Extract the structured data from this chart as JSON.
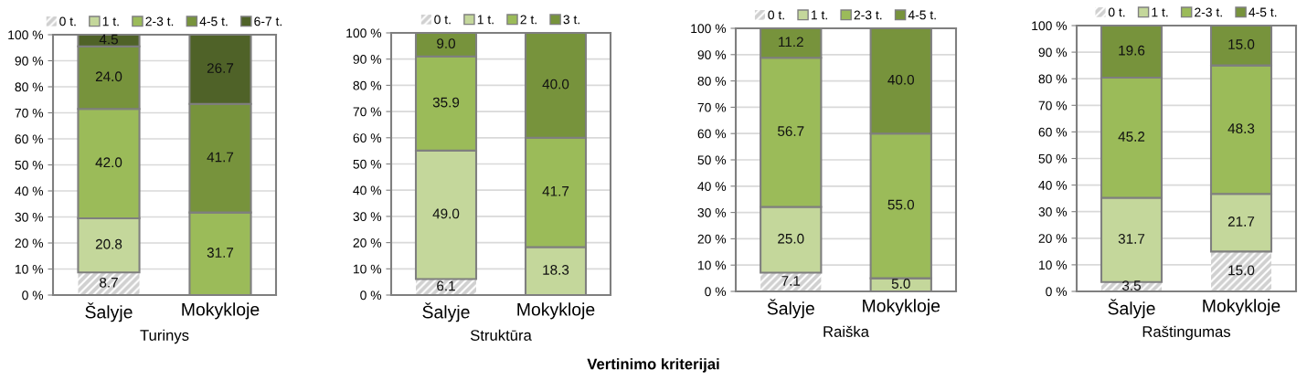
{
  "chart_data": [
    {
      "type": "bar",
      "stacked": true,
      "xlabel": "Turinys",
      "categories": [
        "Šalyje",
        "Mokykloje"
      ],
      "ylim": [
        0,
        100
      ],
      "yticks": [
        {
          "value": 0,
          "label": "0 %"
        },
        {
          "value": 10,
          "label": "10 %"
        },
        {
          "value": 20,
          "label": "20 %"
        },
        {
          "value": 30,
          "label": "30 %"
        },
        {
          "value": 40,
          "label": "40 %"
        },
        {
          "value": 50,
          "label": "50 %"
        },
        {
          "value": 60,
          "label": "60 %"
        },
        {
          "value": 70,
          "label": "70 %"
        },
        {
          "value": 80,
          "label": "80 %"
        },
        {
          "value": 90,
          "label": "90 %"
        },
        {
          "value": 100,
          "label": "100 %"
        }
      ],
      "grid": "y",
      "legend": "top",
      "annotations": [
        "Vertinimo kriterijai"
      ],
      "series": [
        {
          "name": "0 t.",
          "color": "#d0d0d0",
          "values": [
            8.7,
            null
          ],
          "value_labels": [
            "8.7",
            null
          ]
        },
        {
          "name": "1 t.",
          "color": "#c4d79b",
          "values": [
            20.8,
            null
          ],
          "value_labels": [
            "20.8",
            null
          ]
        },
        {
          "name": "2-3 t.",
          "color": "#9bbb59",
          "values": [
            42,
            31.7
          ],
          "value_labels": [
            "42.0",
            "31.7"
          ]
        },
        {
          "name": "4-5 t.",
          "color": "#77933c",
          "values": [
            24,
            41.7
          ],
          "value_labels": [
            "24.0",
            "41.7"
          ]
        },
        {
          "name": "6-7 t.",
          "color": "#4f6228",
          "values": [
            4.5,
            26.7
          ],
          "value_labels": [
            "4.5",
            "26.7"
          ]
        }
      ]
    },
    {
      "type": "bar",
      "stacked": true,
      "xlabel": "Struktūra",
      "categories": [
        "Šalyje",
        "Mokykloje"
      ],
      "ylim": [
        0,
        100
      ],
      "yticks": [
        {
          "value": 0,
          "label": "0 %"
        },
        {
          "value": 10,
          "label": "10 %"
        },
        {
          "value": 20,
          "label": "20 %"
        },
        {
          "value": 30,
          "label": "30 %"
        },
        {
          "value": 40,
          "label": "40 %"
        },
        {
          "value": 50,
          "label": "50 %"
        },
        {
          "value": 60,
          "label": "60 %"
        },
        {
          "value": 70,
          "label": "70 %"
        },
        {
          "value": 80,
          "label": "80 %"
        },
        {
          "value": 90,
          "label": "90 %"
        },
        {
          "value": 100,
          "label": "100 %"
        }
      ],
      "grid": "y",
      "legend": "top",
      "series": [
        {
          "name": "0 t.",
          "color": "#d0d0d0",
          "values": [
            6.1,
            null
          ],
          "value_labels": [
            "6.1",
            null
          ]
        },
        {
          "name": "1 t.",
          "color": "#c4d79b",
          "values": [
            49,
            18.3
          ],
          "value_labels": [
            "49.0",
            "18.3"
          ]
        },
        {
          "name": "2 t.",
          "color": "#9bbb59",
          "values": [
            35.9,
            41.7
          ],
          "value_labels": [
            "35.9",
            "41.7"
          ]
        },
        {
          "name": "3 t.",
          "color": "#77933c",
          "values": [
            9,
            40
          ],
          "value_labels": [
            "9.0",
            "40.0"
          ]
        }
      ]
    },
    {
      "type": "bar",
      "stacked": true,
      "xlabel": "Raiška",
      "categories": [
        "Šalyje",
        "Mokykloje"
      ],
      "ylim": [
        0,
        100
      ],
      "yticks": [
        {
          "value": 0,
          "label": "0 %"
        },
        {
          "value": 10,
          "label": "10 %"
        },
        {
          "value": 20,
          "label": "20 %"
        },
        {
          "value": 30,
          "label": "30 %"
        },
        {
          "value": 40,
          "label": "40 %"
        },
        {
          "value": 50,
          "label": "50 %"
        },
        {
          "value": 60,
          "label": "60 %"
        },
        {
          "value": 70,
          "label": "70 %"
        },
        {
          "value": 80,
          "label": "80 %"
        },
        {
          "value": 90,
          "label": "90 %"
        },
        {
          "value": 100,
          "label": "100 %"
        }
      ],
      "grid": "y",
      "legend": "top",
      "series": [
        {
          "name": "0 t.",
          "color": "#d0d0d0",
          "values": [
            7.1,
            null
          ],
          "value_labels": [
            "7.1",
            null
          ]
        },
        {
          "name": "1 t.",
          "color": "#c4d79b",
          "values": [
            25,
            5
          ],
          "value_labels": [
            "25.0",
            "5.0"
          ]
        },
        {
          "name": "2-3 t.",
          "color": "#9bbb59",
          "values": [
            56.7,
            55
          ],
          "value_labels": [
            "56.7",
            "55.0"
          ]
        },
        {
          "name": "4-5 t.",
          "color": "#77933c",
          "values": [
            11.2,
            40
          ],
          "value_labels": [
            "11.2",
            "40.0"
          ]
        }
      ]
    },
    {
      "type": "bar",
      "stacked": true,
      "xlabel": "Raštingumas",
      "categories": [
        "Šalyje",
        "Mokykloje"
      ],
      "ylim": [
        0,
        100
      ],
      "yticks": [
        {
          "value": 0,
          "label": "0 %"
        },
        {
          "value": 10,
          "label": "10 %"
        },
        {
          "value": 20,
          "label": "20 %"
        },
        {
          "value": 30,
          "label": "30 %"
        },
        {
          "value": 40,
          "label": "40 %"
        },
        {
          "value": 50,
          "label": "50 %"
        },
        {
          "value": 60,
          "label": "60 %"
        },
        {
          "value": 70,
          "label": "70 %"
        },
        {
          "value": 80,
          "label": "80 %"
        },
        {
          "value": 90,
          "label": "90 %"
        },
        {
          "value": 100,
          "label": "100 %"
        }
      ],
      "grid": "y",
      "legend": "top",
      "series": [
        {
          "name": "0 t.",
          "color": "#d0d0d0",
          "values": [
            3.5,
            15
          ],
          "value_labels": [
            "3.5",
            "15.0"
          ]
        },
        {
          "name": "1 t.",
          "color": "#c4d79b",
          "values": [
            31.7,
            21.7
          ],
          "value_labels": [
            "31.7",
            "21.7"
          ]
        },
        {
          "name": "2-3 t.",
          "color": "#9bbb59",
          "values": [
            45.2,
            48.3
          ],
          "value_labels": [
            "45.2",
            "48.3"
          ]
        },
        {
          "name": "4-5 t.",
          "color": "#77933c",
          "values": [
            19.6,
            15
          ],
          "value_labels": [
            "19.6",
            "15.0"
          ]
        }
      ]
    }
  ]
}
